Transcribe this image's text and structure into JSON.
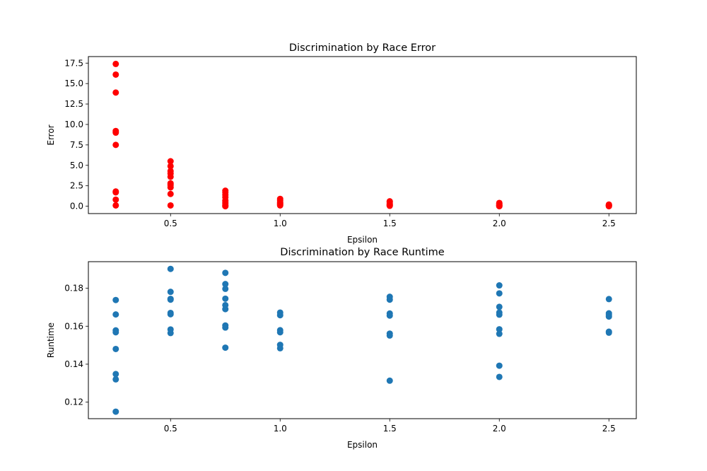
{
  "chart_data": [
    {
      "type": "scatter",
      "title": "Discrimination by Race Error",
      "xlabel": "Epsilon",
      "ylabel": "Error",
      "xlim": [
        0.125,
        2.625
      ],
      "ylim": [
        -0.9,
        18.3
      ],
      "xticks": [
        0.5,
        1.0,
        1.5,
        2.0,
        2.5
      ],
      "xtick_labels": [
        "0.5",
        "1.0",
        "1.5",
        "2.0",
        "2.5"
      ],
      "yticks": [
        0.0,
        2.5,
        5.0,
        7.5,
        10.0,
        12.5,
        15.0,
        17.5
      ],
      "ytick_labels": [
        "0.0",
        "2.5",
        "5.0",
        "7.5",
        "10.0",
        "12.5",
        "15.0",
        "17.5"
      ],
      "grid": false,
      "color": "#ff0000",
      "points": [
        [
          0.25,
          17.4
        ],
        [
          0.25,
          16.1
        ],
        [
          0.25,
          13.9
        ],
        [
          0.25,
          9.2
        ],
        [
          0.25,
          9.0
        ],
        [
          0.25,
          7.5
        ],
        [
          0.25,
          1.8
        ],
        [
          0.25,
          1.7
        ],
        [
          0.25,
          0.8
        ],
        [
          0.25,
          0.1
        ],
        [
          0.5,
          5.5
        ],
        [
          0.5,
          4.9
        ],
        [
          0.5,
          4.3
        ],
        [
          0.5,
          4.0
        ],
        [
          0.5,
          3.6
        ],
        [
          0.5,
          2.8
        ],
        [
          0.5,
          2.6
        ],
        [
          0.5,
          2.3
        ],
        [
          0.5,
          1.5
        ],
        [
          0.5,
          0.1
        ],
        [
          0.75,
          1.9
        ],
        [
          0.75,
          1.7
        ],
        [
          0.75,
          1.4
        ],
        [
          0.75,
          1.1
        ],
        [
          0.75,
          0.7
        ],
        [
          0.75,
          0.5
        ],
        [
          0.75,
          0.3
        ],
        [
          0.75,
          0.1
        ],
        [
          0.75,
          0.0
        ],
        [
          1.0,
          0.9
        ],
        [
          1.0,
          0.7
        ],
        [
          1.0,
          0.5
        ],
        [
          1.0,
          0.4
        ],
        [
          1.0,
          0.3
        ],
        [
          1.0,
          0.2
        ],
        [
          1.0,
          0.1
        ],
        [
          1.5,
          0.6
        ],
        [
          1.5,
          0.5
        ],
        [
          1.5,
          0.3
        ],
        [
          1.5,
          0.2
        ],
        [
          1.5,
          0.1
        ],
        [
          1.5,
          0.05
        ],
        [
          2.0,
          0.4
        ],
        [
          2.0,
          0.3
        ],
        [
          2.0,
          0.2
        ],
        [
          2.0,
          0.1
        ],
        [
          2.0,
          0.05
        ],
        [
          2.0,
          0.0
        ],
        [
          2.5,
          0.2
        ],
        [
          2.5,
          0.15
        ],
        [
          2.5,
          0.1
        ],
        [
          2.5,
          0.05
        ],
        [
          2.5,
          0.0
        ]
      ]
    },
    {
      "type": "scatter",
      "title": "Discrimination by Race Runtime",
      "xlabel": "Epsilon",
      "ylabel": "Runtime",
      "xlim": [
        0.125,
        2.625
      ],
      "ylim": [
        0.1113,
        0.194
      ],
      "xticks": [
        0.5,
        1.0,
        1.5,
        2.0,
        2.5
      ],
      "xtick_labels": [
        "0.5",
        "1.0",
        "1.5",
        "2.0",
        "2.5"
      ],
      "yticks": [
        0.12,
        0.14,
        0.16,
        0.18
      ],
      "ytick_labels": [
        "0.12",
        "0.14",
        "0.16",
        "0.18"
      ],
      "grid": false,
      "color": "#1f77b4",
      "points": [
        [
          0.25,
          0.1738
        ],
        [
          0.25,
          0.1662
        ],
        [
          0.25,
          0.1578
        ],
        [
          0.25,
          0.1568
        ],
        [
          0.25,
          0.148
        ],
        [
          0.25,
          0.1348
        ],
        [
          0.25,
          0.132
        ],
        [
          0.25,
          0.115
        ],
        [
          0.5,
          0.1902
        ],
        [
          0.5,
          0.1781
        ],
        [
          0.5,
          0.1744
        ],
        [
          0.5,
          0.174
        ],
        [
          0.5,
          0.167
        ],
        [
          0.5,
          0.1663
        ],
        [
          0.5,
          0.1583
        ],
        [
          0.5,
          0.1564
        ],
        [
          0.75,
          0.1881
        ],
        [
          0.75,
          0.1822
        ],
        [
          0.75,
          0.1797
        ],
        [
          0.75,
          0.1745
        ],
        [
          0.75,
          0.1711
        ],
        [
          0.75,
          0.169
        ],
        [
          0.75,
          0.1604
        ],
        [
          0.75,
          0.1593
        ],
        [
          0.75,
          0.1487
        ],
        [
          1.0,
          0.1672
        ],
        [
          1.0,
          0.1658
        ],
        [
          1.0,
          0.1579
        ],
        [
          1.0,
          0.1568
        ],
        [
          1.0,
          0.1502
        ],
        [
          1.0,
          0.1484
        ],
        [
          1.5,
          0.1755
        ],
        [
          1.5,
          0.174
        ],
        [
          1.5,
          0.1667
        ],
        [
          1.5,
          0.1656
        ],
        [
          1.5,
          0.1561
        ],
        [
          1.5,
          0.1551
        ],
        [
          1.5,
          0.1313
        ],
        [
          2.0,
          0.1815
        ],
        [
          2.0,
          0.1773
        ],
        [
          2.0,
          0.1702
        ],
        [
          2.0,
          0.1672
        ],
        [
          2.0,
          0.1661
        ],
        [
          2.0,
          0.1584
        ],
        [
          2.0,
          0.156
        ],
        [
          2.0,
          0.1392
        ],
        [
          2.0,
          0.1333
        ],
        [
          2.5,
          0.1743
        ],
        [
          2.5,
          0.1668
        ],
        [
          2.5,
          0.166
        ],
        [
          2.5,
          0.1651
        ],
        [
          2.5,
          0.1571
        ],
        [
          2.5,
          0.1566
        ]
      ]
    }
  ]
}
